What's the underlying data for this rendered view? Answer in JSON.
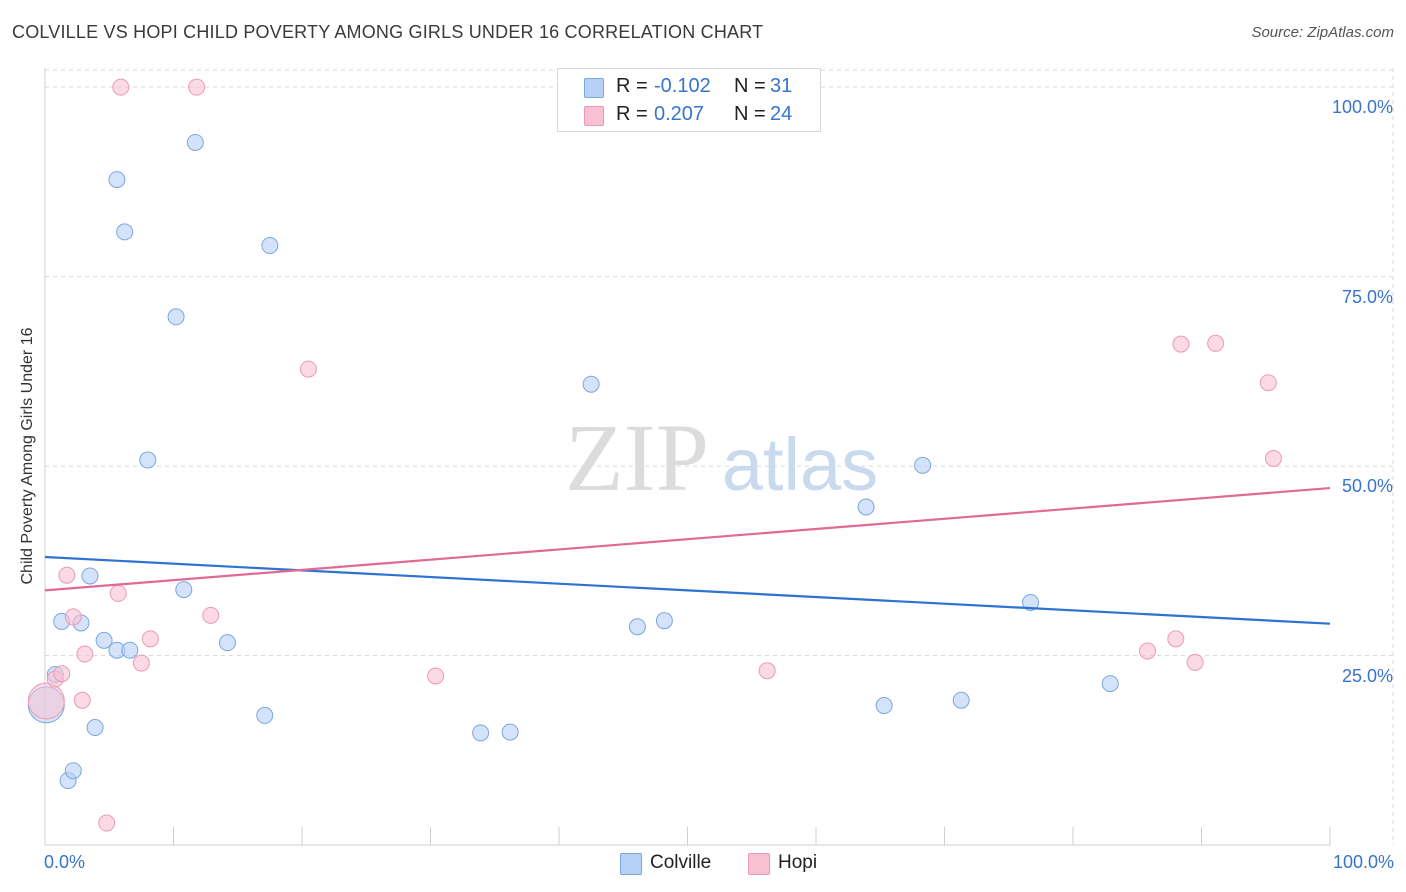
{
  "title": "COLVILLE VS HOPI CHILD POVERTY AMONG GIRLS UNDER 16 CORRELATION CHART",
  "source": "Source: ZipAtlas.com",
  "watermark": {
    "zip": "ZIP",
    "atlas": "atlas"
  },
  "legend": {
    "colville": {
      "r_label": "R =",
      "r_value": "-0.102",
      "n_label": "N =",
      "n_value": "31"
    },
    "hopi": {
      "r_label": "R =",
      "r_value": "0.207",
      "n_label": "N =",
      "n_value": "24"
    }
  },
  "colors": {
    "colville_fill": "#b7d0f5",
    "colville_stroke": "#7aa7e0",
    "colville_line": "#2e72d2",
    "hopi_fill": "#f9c2d3",
    "hopi_stroke": "#ec9ab4",
    "hopi_line": "#e06a94",
    "axis_text": "#3874cc",
    "grid": "#d9d9d9"
  },
  "chart_data": {
    "type": "scatter",
    "title": "COLVILLE VS HOPI CHILD POVERTY AMONG GIRLS UNDER 16 CORRELATION CHART",
    "xlabel": "",
    "ylabel": "Child Poverty Among Girls Under 16",
    "xlim": [
      0,
      100
    ],
    "ylim": [
      0,
      102
    ],
    "x_tick_labels": [
      "0.0%",
      "100.0%"
    ],
    "y_tick_labels": [
      "25.0%",
      "50.0%",
      "75.0%",
      "100.0%"
    ],
    "y_tick_values": [
      25,
      50,
      75,
      100
    ],
    "legend_bottom": [
      "Colville",
      "Hopi"
    ],
    "series": [
      {
        "name": "Colville",
        "r": -0.102,
        "n": 31,
        "trend": {
          "x": [
            0,
            100
          ],
          "y": [
            38.0,
            29.2
          ]
        },
        "points": [
          {
            "x": 0.1,
            "y": 18.5,
            "big": true
          },
          {
            "x": 0.8,
            "y": 22.5
          },
          {
            "x": 1.3,
            "y": 29.5
          },
          {
            "x": 1.8,
            "y": 8.5
          },
          {
            "x": 2.2,
            "y": 9.8
          },
          {
            "x": 2.8,
            "y": 29.3
          },
          {
            "x": 3.5,
            "y": 35.5
          },
          {
            "x": 3.9,
            "y": 15.5
          },
          {
            "x": 4.6,
            "y": 27.0
          },
          {
            "x": 5.6,
            "y": 25.7
          },
          {
            "x": 6.6,
            "y": 25.7
          },
          {
            "x": 5.6,
            "y": 87.8
          },
          {
            "x": 6.2,
            "y": 80.9
          },
          {
            "x": 8.0,
            "y": 50.8
          },
          {
            "x": 10.2,
            "y": 69.7
          },
          {
            "x": 10.8,
            "y": 33.7
          },
          {
            "x": 11.7,
            "y": 92.7
          },
          {
            "x": 14.2,
            "y": 26.7
          },
          {
            "x": 17.1,
            "y": 17.1
          },
          {
            "x": 17.5,
            "y": 79.1
          },
          {
            "x": 42.5,
            "y": 60.8
          },
          {
            "x": 33.9,
            "y": 14.8
          },
          {
            "x": 36.2,
            "y": 14.9
          },
          {
            "x": 46.1,
            "y": 28.8
          },
          {
            "x": 48.2,
            "y": 29.6
          },
          {
            "x": 63.9,
            "y": 44.6
          },
          {
            "x": 68.3,
            "y": 50.1
          },
          {
            "x": 65.3,
            "y": 18.4
          },
          {
            "x": 71.3,
            "y": 19.1
          },
          {
            "x": 76.7,
            "y": 32.0
          },
          {
            "x": 82.9,
            "y": 21.3
          }
        ]
      },
      {
        "name": "Hopi",
        "r": 0.207,
        "n": 24,
        "trend": {
          "x": [
            0,
            100
          ],
          "y": [
            33.6,
            47.1
          ]
        },
        "points": [
          {
            "x": 0.1,
            "y": 19.0,
            "big": true
          },
          {
            "x": 0.8,
            "y": 21.9
          },
          {
            "x": 1.3,
            "y": 22.6
          },
          {
            "x": 1.7,
            "y": 35.6
          },
          {
            "x": 2.2,
            "y": 30.1
          },
          {
            "x": 2.9,
            "y": 19.1
          },
          {
            "x": 3.1,
            "y": 25.2
          },
          {
            "x": 4.8,
            "y": 2.9
          },
          {
            "x": 5.7,
            "y": 33.2
          },
          {
            "x": 5.9,
            "y": 100.0
          },
          {
            "x": 7.5,
            "y": 24.0
          },
          {
            "x": 8.2,
            "y": 27.2
          },
          {
            "x": 11.8,
            "y": 100.0
          },
          {
            "x": 12.9,
            "y": 30.3
          },
          {
            "x": 20.5,
            "y": 62.8
          },
          {
            "x": 30.4,
            "y": 22.3
          },
          {
            "x": 56.2,
            "y": 23.0
          },
          {
            "x": 85.8,
            "y": 25.6
          },
          {
            "x": 88.0,
            "y": 27.2
          },
          {
            "x": 88.4,
            "y": 66.1
          },
          {
            "x": 89.5,
            "y": 24.1
          },
          {
            "x": 91.1,
            "y": 66.2
          },
          {
            "x": 95.2,
            "y": 61.0
          },
          {
            "x": 95.6,
            "y": 51.0
          }
        ]
      }
    ]
  }
}
